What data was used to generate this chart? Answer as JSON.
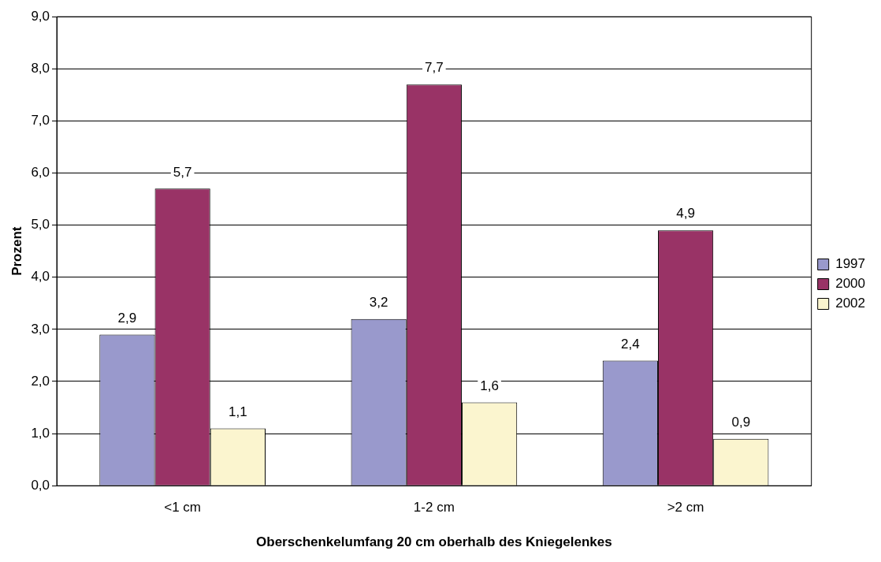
{
  "chart_data": {
    "type": "bar",
    "xlabel": "Oberschenkelumfang 20 cm oberhalb des Kniegelenkes",
    "ylabel": "Prozent",
    "categories": [
      "<1 cm",
      "1-2 cm",
      ">2 cm"
    ],
    "series": [
      {
        "name": "1997",
        "color": "#9999cc",
        "values": [
          2.9,
          3.2,
          2.4
        ],
        "value_labels": [
          "2,9",
          "3,2",
          "2,4"
        ]
      },
      {
        "name": "2000",
        "color": "#993366",
        "values": [
          5.7,
          7.7,
          4.9
        ],
        "value_labels": [
          "5,7",
          "7,7",
          "4,9"
        ]
      },
      {
        "name": "2002",
        "color": "#fbf5cf",
        "values": [
          1.1,
          1.6,
          0.9
        ],
        "value_labels": [
          "1,1",
          "1,6",
          "0,9"
        ]
      }
    ],
    "ylim": [
      0,
      9
    ],
    "yticks": [
      {
        "value": 0,
        "label": "0,0"
      },
      {
        "value": 1,
        "label": "1,0"
      },
      {
        "value": 2,
        "label": "2,0"
      },
      {
        "value": 3,
        "label": "3,0"
      },
      {
        "value": 4,
        "label": "4,0"
      },
      {
        "value": 5,
        "label": "5,0"
      },
      {
        "value": 6,
        "label": "6,0"
      },
      {
        "value": 7,
        "label": "7,0"
      },
      {
        "value": 8,
        "label": "8,0"
      },
      {
        "value": 9,
        "label": "9,0"
      }
    ],
    "grid": "y",
    "legend": "right"
  }
}
